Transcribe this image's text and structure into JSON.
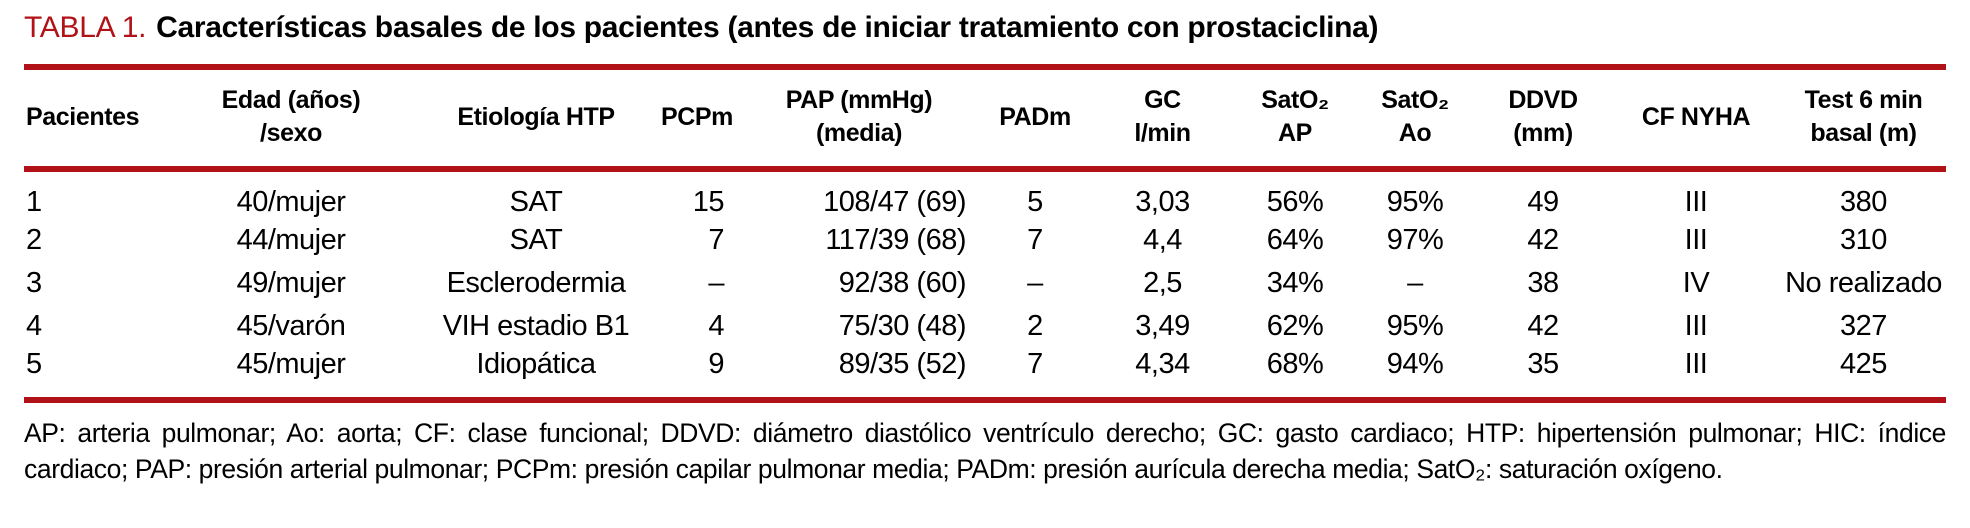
{
  "title": {
    "label": "TABLA 1.",
    "text": "Características basales de los pacientes (antes de iniciar tratamiento con prostaciclina)"
  },
  "colors": {
    "accent": "#b01217",
    "text": "#000000",
    "background": "#ffffff"
  },
  "table": {
    "headers": [
      "Pacientes",
      "Edad (años)\n/sexo",
      "Etiología HTP",
      "PCPm",
      "PAP (mmHg)\n(media)",
      "PADm",
      "GC\nl/min",
      "SatO₂\nAP",
      "SatO₂\nAo",
      "DDVD\n(mm)",
      "CF NYHA",
      "Test 6 min\nbasal (m)"
    ],
    "rows": [
      [
        "1",
        "40/mujer",
        "SAT",
        "15",
        "108/47 (69)",
        "5",
        "3,03",
        "56%",
        "95%",
        "49",
        "III",
        "380"
      ],
      [
        "2",
        "44/mujer",
        "SAT",
        "7",
        "117/39 (68)",
        "7",
        "4,4",
        "64%",
        "97%",
        "42",
        "III",
        "310"
      ],
      [
        "3",
        "49/mujer",
        "Esclerodermia",
        "–",
        "92/38 (60)",
        "–",
        "2,5",
        "34%",
        "–",
        "38",
        "IV",
        "No realizado"
      ],
      [
        "4",
        "45/varón",
        "VIH estadio B1",
        "4",
        "75/30 (48)",
        "2",
        "3,49",
        "62%",
        "95%",
        "42",
        "III",
        "327"
      ],
      [
        "5",
        "45/mujer",
        "Idiopática",
        "9",
        "89/35 (52)",
        "7",
        "4,34",
        "68%",
        "94%",
        "35",
        "III",
        "425"
      ]
    ]
  },
  "footnote": "AP: arteria pulmonar; Ao: aorta; CF: clase funcional; DDVD: diámetro diastólico ventrículo derecho; GC: gasto cardiaco; HTP: hipertensión pulmonar; HIC: índice cardiaco; PAP: presión arterial pulmonar; PCPm: presión capilar pulmonar media; PADm: presión aurícula derecha media; SatO₂: saturación oxígeno."
}
